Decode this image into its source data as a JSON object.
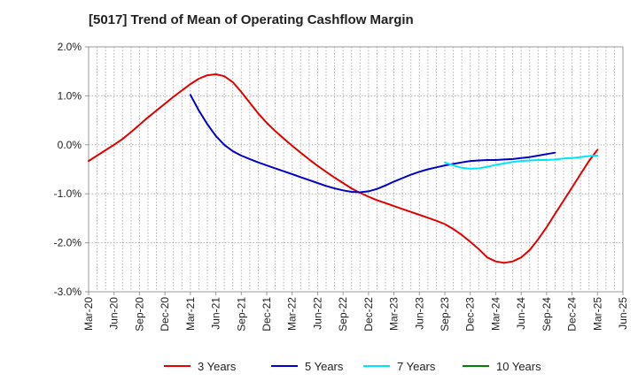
{
  "chart_data": {
    "type": "line",
    "title": "[5017]  Trend of Mean of Operating Cashflow Margin",
    "xlabel": "",
    "ylabel": "",
    "x_ticks": [
      "Mar-20",
      "Jun-20",
      "Sep-20",
      "Dec-20",
      "Mar-21",
      "Jun-21",
      "Sep-21",
      "Dec-21",
      "Mar-22",
      "Jun-22",
      "Sep-22",
      "Dec-22",
      "Mar-23",
      "Jun-23",
      "Sep-23",
      "Dec-23",
      "Mar-24",
      "Jun-24",
      "Sep-24",
      "Dec-24",
      "Mar-25",
      "Jun-25"
    ],
    "y_ticks": [
      "2.0%",
      "1.0%",
      "0.0%",
      "-1.0%",
      "-2.0%",
      "-3.0%"
    ],
    "ylim": [
      -3.0,
      2.0
    ],
    "grid": true,
    "legend_position": "bottom",
    "series": [
      {
        "name": "3 Years",
        "color": "#e00000",
        "points": [
          [
            "Mar-20",
            -0.33
          ],
          [
            "Apr-20",
            -0.22
          ],
          [
            "May-20",
            -0.11
          ],
          [
            "Jun-20",
            0.0
          ],
          [
            "Jul-20",
            0.12
          ],
          [
            "Aug-20",
            0.26
          ],
          [
            "Sep-20",
            0.41
          ],
          [
            "Oct-20",
            0.56
          ],
          [
            "Nov-20",
            0.7
          ],
          [
            "Dec-20",
            0.84
          ],
          [
            "Jan-21",
            0.98
          ],
          [
            "Feb-21",
            1.11
          ],
          [
            "Mar-21",
            1.24
          ],
          [
            "Apr-21",
            1.35
          ],
          [
            "May-21",
            1.42
          ],
          [
            "Jun-21",
            1.44
          ],
          [
            "Jul-21",
            1.4
          ],
          [
            "Aug-21",
            1.28
          ],
          [
            "Sep-21",
            1.08
          ],
          [
            "Oct-21",
            0.86
          ],
          [
            "Nov-21",
            0.64
          ],
          [
            "Dec-21",
            0.45
          ],
          [
            "Jan-22",
            0.28
          ],
          [
            "Feb-22",
            0.13
          ],
          [
            "Mar-22",
            -0.02
          ],
          [
            "Apr-22",
            -0.16
          ],
          [
            "May-22",
            -0.3
          ],
          [
            "Jun-22",
            -0.43
          ],
          [
            "Jul-22",
            -0.55
          ],
          [
            "Aug-22",
            -0.67
          ],
          [
            "Sep-22",
            -0.78
          ],
          [
            "Oct-22",
            -0.89
          ],
          [
            "Nov-22",
            -0.98
          ],
          [
            "Dec-22",
            -1.06
          ],
          [
            "Jan-23",
            -1.13
          ],
          [
            "Feb-23",
            -1.19
          ],
          [
            "Mar-23",
            -1.25
          ],
          [
            "Apr-23",
            -1.31
          ],
          [
            "May-23",
            -1.37
          ],
          [
            "Jun-23",
            -1.43
          ],
          [
            "Jul-23",
            -1.49
          ],
          [
            "Aug-23",
            -1.55
          ],
          [
            "Sep-23",
            -1.62
          ],
          [
            "Oct-23",
            -1.72
          ],
          [
            "Nov-23",
            -1.84
          ],
          [
            "Dec-23",
            -1.98
          ],
          [
            "Jan-24",
            -2.13
          ],
          [
            "Feb-24",
            -2.3
          ],
          [
            "Mar-24",
            -2.38
          ],
          [
            "Apr-24",
            -2.41
          ],
          [
            "May-24",
            -2.38
          ],
          [
            "Jun-24",
            -2.3
          ],
          [
            "Jul-24",
            -2.15
          ],
          [
            "Aug-24",
            -1.93
          ],
          [
            "Sep-24",
            -1.68
          ],
          [
            "Oct-24",
            -1.41
          ],
          [
            "Nov-24",
            -1.14
          ],
          [
            "Dec-24",
            -0.87
          ],
          [
            "Jan-25",
            -0.6
          ],
          [
            "Feb-25",
            -0.33
          ],
          [
            "Mar-25",
            -0.1
          ]
        ]
      },
      {
        "name": "5 Years",
        "color": "#0000c8",
        "points": [
          [
            "Mar-21",
            1.02
          ],
          [
            "Apr-21",
            0.7
          ],
          [
            "May-21",
            0.42
          ],
          [
            "Jun-21",
            0.18
          ],
          [
            "Jul-21",
            0.0
          ],
          [
            "Aug-21",
            -0.13
          ],
          [
            "Sep-21",
            -0.22
          ],
          [
            "Oct-21",
            -0.29
          ],
          [
            "Nov-21",
            -0.36
          ],
          [
            "Dec-21",
            -0.42
          ],
          [
            "Jan-22",
            -0.48
          ],
          [
            "Feb-22",
            -0.54
          ],
          [
            "Mar-22",
            -0.6
          ],
          [
            "Apr-22",
            -0.66
          ],
          [
            "May-22",
            -0.72
          ],
          [
            "Jun-22",
            -0.78
          ],
          [
            "Jul-22",
            -0.84
          ],
          [
            "Aug-22",
            -0.89
          ],
          [
            "Sep-22",
            -0.93
          ],
          [
            "Oct-22",
            -0.96
          ],
          [
            "Nov-22",
            -0.97
          ],
          [
            "Dec-22",
            -0.95
          ],
          [
            "Jan-23",
            -0.9
          ],
          [
            "Feb-23",
            -0.83
          ],
          [
            "Mar-23",
            -0.75
          ],
          [
            "Apr-23",
            -0.68
          ],
          [
            "May-23",
            -0.61
          ],
          [
            "Jun-23",
            -0.55
          ],
          [
            "Jul-23",
            -0.5
          ],
          [
            "Aug-23",
            -0.46
          ],
          [
            "Sep-23",
            -0.42
          ],
          [
            "Oct-23",
            -0.39
          ],
          [
            "Nov-23",
            -0.36
          ],
          [
            "Dec-23",
            -0.33
          ],
          [
            "Jan-24",
            -0.32
          ],
          [
            "Feb-24",
            -0.31
          ],
          [
            "Mar-24",
            -0.31
          ],
          [
            "Apr-24",
            -0.3
          ],
          [
            "May-24",
            -0.29
          ],
          [
            "Jun-24",
            -0.27
          ],
          [
            "Jul-24",
            -0.25
          ],
          [
            "Aug-24",
            -0.22
          ],
          [
            "Sep-24",
            -0.19
          ],
          [
            "Oct-24",
            -0.16
          ]
        ]
      },
      {
        "name": "7 Years",
        "color": "#00e5ff",
        "points": [
          [
            "Sep-23",
            -0.36
          ],
          [
            "Oct-23",
            -0.42
          ],
          [
            "Nov-23",
            -0.47
          ],
          [
            "Dec-23",
            -0.49
          ],
          [
            "Jan-24",
            -0.48
          ],
          [
            "Feb-24",
            -0.45
          ],
          [
            "Mar-24",
            -0.41
          ],
          [
            "Apr-24",
            -0.38
          ],
          [
            "May-24",
            -0.35
          ],
          [
            "Jun-24",
            -0.33
          ],
          [
            "Jul-24",
            -0.32
          ],
          [
            "Aug-24",
            -0.31
          ],
          [
            "Sep-24",
            -0.31
          ],
          [
            "Oct-24",
            -0.3
          ],
          [
            "Nov-24",
            -0.28
          ],
          [
            "Dec-24",
            -0.27
          ],
          [
            "Jan-25",
            -0.25
          ],
          [
            "Feb-25",
            -0.23
          ],
          [
            "Mar-25",
            -0.22
          ]
        ]
      },
      {
        "name": "10 Years",
        "color": "#008000",
        "points": []
      }
    ]
  }
}
